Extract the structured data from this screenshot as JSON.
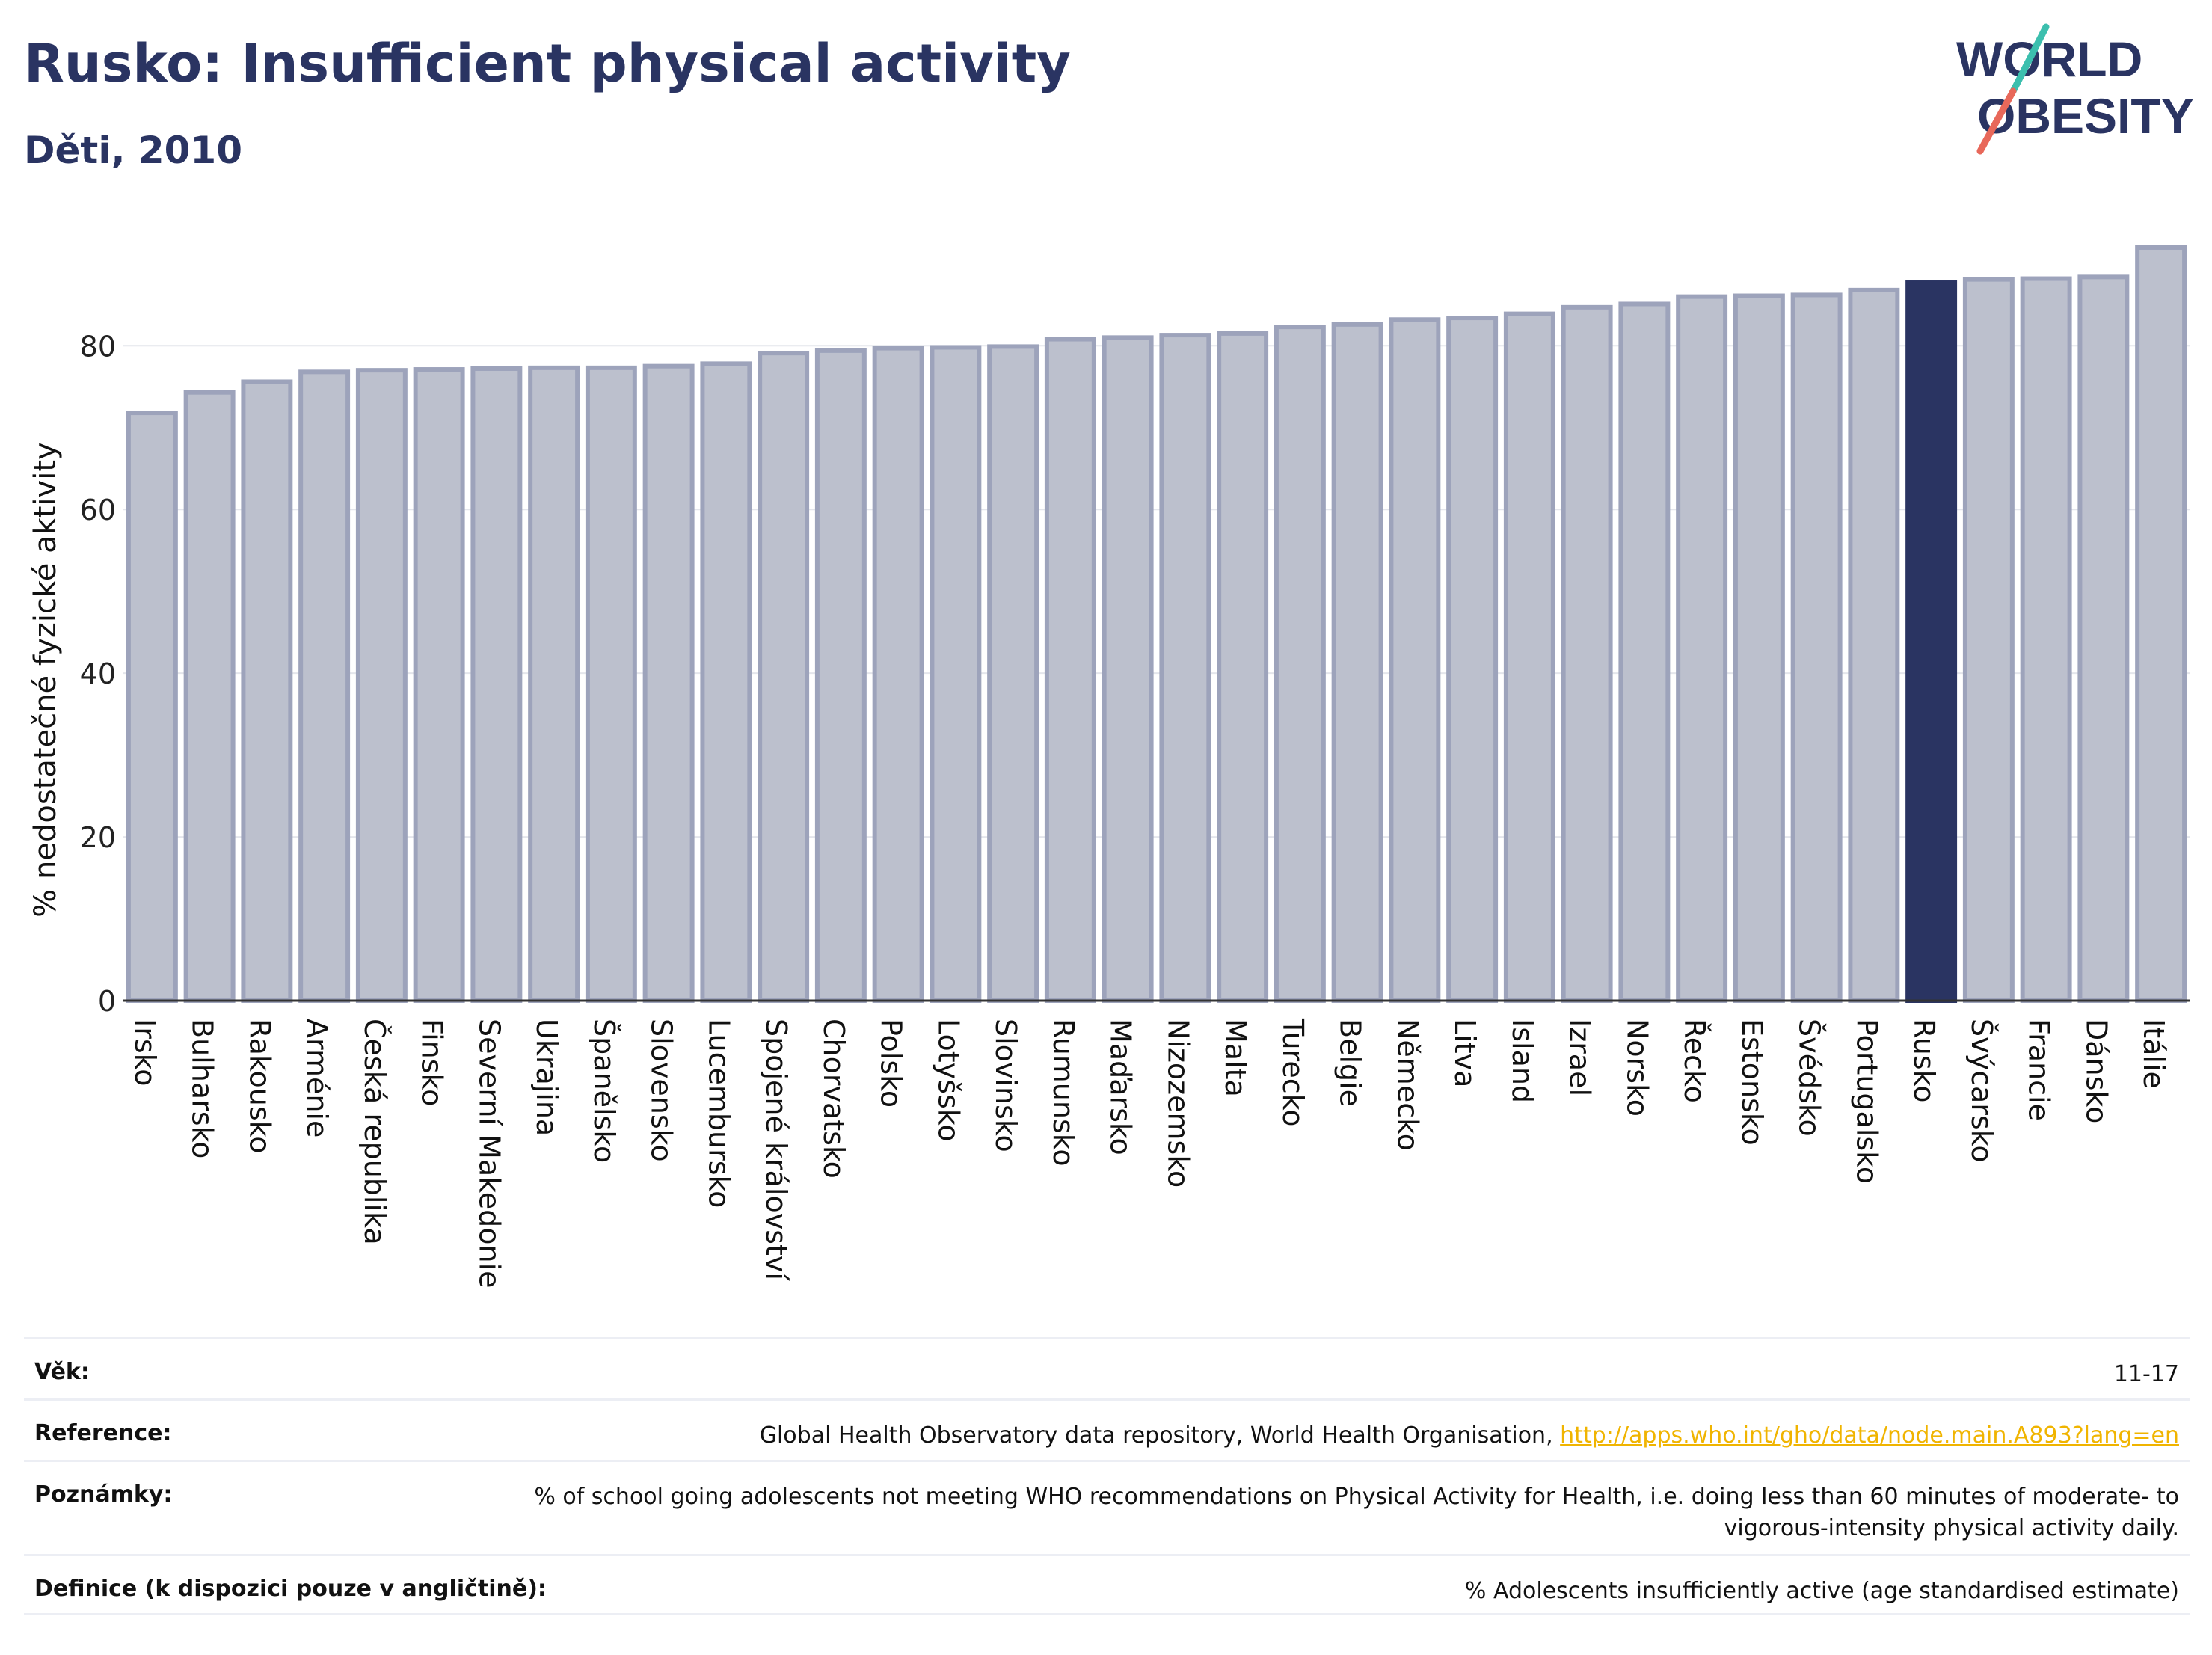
{
  "header": {
    "title": "Rusko: Insufficient physical activity",
    "subtitle": "Děti, 2010"
  },
  "logo": {
    "line1": "WORLD",
    "line2": "OBESITY",
    "colors": {
      "text": "#2a3462",
      "slash_top": "#3cbfae",
      "slash_bottom": "#e8685a"
    }
  },
  "colors": {
    "bar_default": "#bcc0cd",
    "bar_default_edge": "#9da3bb",
    "bar_highlight": "#2a3462",
    "grid": "#e4e6ec",
    "axis": "#333333"
  },
  "chart_data": {
    "type": "bar",
    "ylabel": "% nedostatečné fyzické aktivity",
    "xlabel": "",
    "ylim": [
      0,
      93
    ],
    "yticks": [
      0,
      20,
      40,
      60,
      80
    ],
    "grid": true,
    "highlight": "Rusko",
    "categories": [
      "Irsko",
      "Bulharsko",
      "Rakousko",
      "Arménie",
      "Česká republika",
      "Finsko",
      "Severní Makedonie",
      "Ukrajina",
      "Španělsko",
      "Slovensko",
      "Lucembursko",
      "Spojené království",
      "Chorvatsko",
      "Polsko",
      "Lotyšsko",
      "Slovinsko",
      "Rumunsko",
      "Maďarsko",
      "Nizozemsko",
      "Malta",
      "Turecko",
      "Belgie",
      "Německo",
      "Litva",
      "Island",
      "Izrael",
      "Norsko",
      "Řecko",
      "Estonsko",
      "Švédsko",
      "Portugalsko",
      "Rusko",
      "Švýcarsko",
      "Francie",
      "Dánsko",
      "Itálie"
    ],
    "values": [
      71.8,
      74.3,
      75.6,
      76.8,
      77.0,
      77.1,
      77.2,
      77.3,
      77.3,
      77.5,
      77.8,
      79.1,
      79.4,
      79.7,
      79.8,
      79.9,
      80.8,
      81.0,
      81.3,
      81.5,
      82.3,
      82.6,
      83.2,
      83.4,
      83.9,
      84.7,
      85.1,
      86.0,
      86.1,
      86.2,
      86.8,
      87.7,
      88.1,
      88.2,
      88.4,
      92.0
    ]
  },
  "info": {
    "rows": [
      {
        "label": "Věk:",
        "value": "11-17"
      },
      {
        "label": "Reference:",
        "value": "Global Health Observatory data repository, World Health Organisation, ",
        "link": "http://apps.who.int/gho/data/node.main.A893?lang=en"
      },
      {
        "label": "Poznámky:",
        "value": "% of school going adolescents not meeting WHO recommendations on Physical Activity for Health, i.e. doing less than 60 minutes of moderate- to vigorous-intensity physical activity daily."
      },
      {
        "label": "Definice (k dispozici pouze v angličtině):",
        "value": "% Adolescents insufficiently active (age standardised estimate)"
      }
    ]
  }
}
